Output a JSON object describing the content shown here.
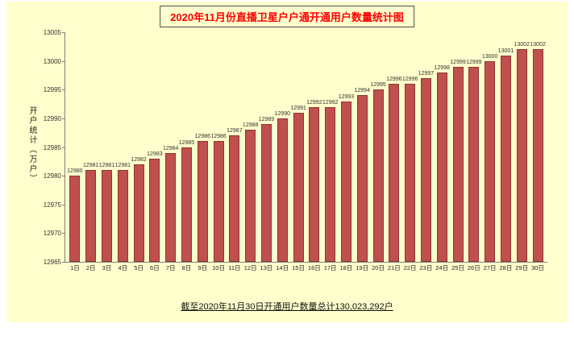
{
  "chart_data": {
    "type": "bar",
    "title": "2020年11月份直播卫星户户通开通用户数量统计图",
    "ylabel": "开户统计（万户）",
    "footnote": "截至2020年11月30日开通用户数量总计130,023,292户",
    "categories": [
      "1日",
      "2日",
      "3日",
      "4日",
      "5日",
      "6日",
      "7日",
      "8日",
      "9日",
      "10日",
      "11日",
      "12日",
      "13日",
      "14日",
      "15日",
      "16日",
      "17日",
      "18日",
      "19日",
      "20日",
      "21日",
      "22日",
      "23日",
      "24日",
      "25日",
      "26日",
      "27日",
      "28日",
      "29日",
      "30日"
    ],
    "values": [
      12980,
      12981,
      12981,
      12981,
      12982,
      12983,
      12984,
      12985,
      12986,
      12986,
      12987,
      12988,
      12989,
      12990,
      12991,
      12992,
      12992,
      12993,
      12994,
      12995,
      12996,
      12996,
      12997,
      12998,
      12999,
      12999,
      13000,
      13001,
      13002,
      13002
    ],
    "ylim": [
      12965,
      13005
    ],
    "yticks": [
      12965,
      12970,
      12975,
      12980,
      12985,
      12990,
      12995,
      13000,
      13005
    ],
    "grid": false,
    "legend": "none",
    "colors": {
      "bar_fill": "#c0504d",
      "bar_border": "#8c3634",
      "panel_bg": "#ffffcd",
      "title_color": "#ff0000"
    }
  }
}
